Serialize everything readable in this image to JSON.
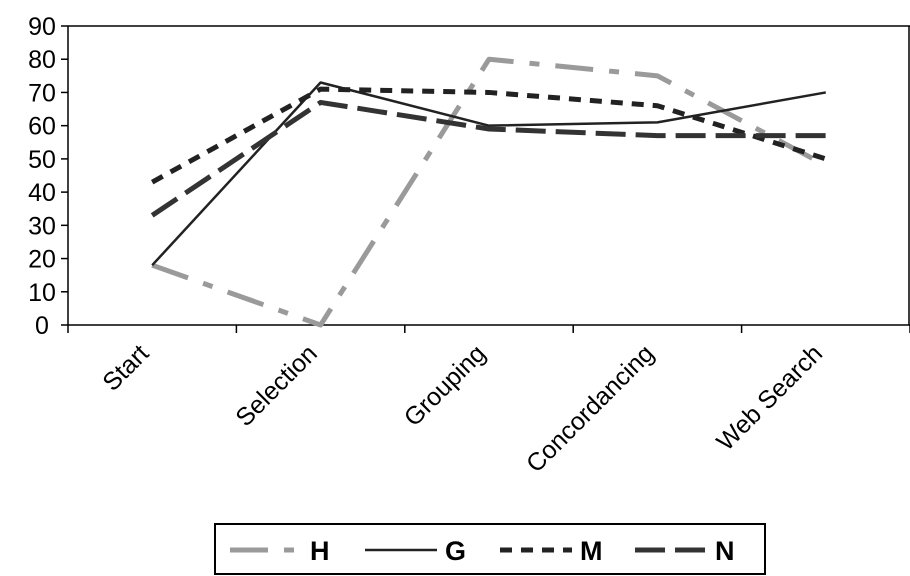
{
  "chart_data": {
    "type": "line",
    "categories": [
      "Start",
      "Selection",
      "Grouping",
      "Concordancing",
      "Web Search"
    ],
    "ylim": [
      0,
      90
    ],
    "yticks": [
      0,
      10,
      20,
      30,
      40,
      50,
      60,
      70,
      80,
      90
    ],
    "grid": false,
    "legend": "bottom",
    "series": [
      {
        "name": "H",
        "values": [
          18,
          0,
          80,
          75,
          48
        ],
        "color": "#9a9a9a",
        "style": "dash-dot"
      },
      {
        "name": "G",
        "values": [
          18,
          73,
          60,
          61,
          70
        ],
        "color": "#222222",
        "style": "solid"
      },
      {
        "name": "M",
        "values": [
          43,
          71,
          70,
          66,
          50
        ],
        "color": "#222222",
        "style": "dotted"
      },
      {
        "name": "N",
        "values": [
          33,
          67,
          59,
          57,
          57
        ],
        "color": "#333333",
        "style": "long-dash"
      }
    ]
  }
}
